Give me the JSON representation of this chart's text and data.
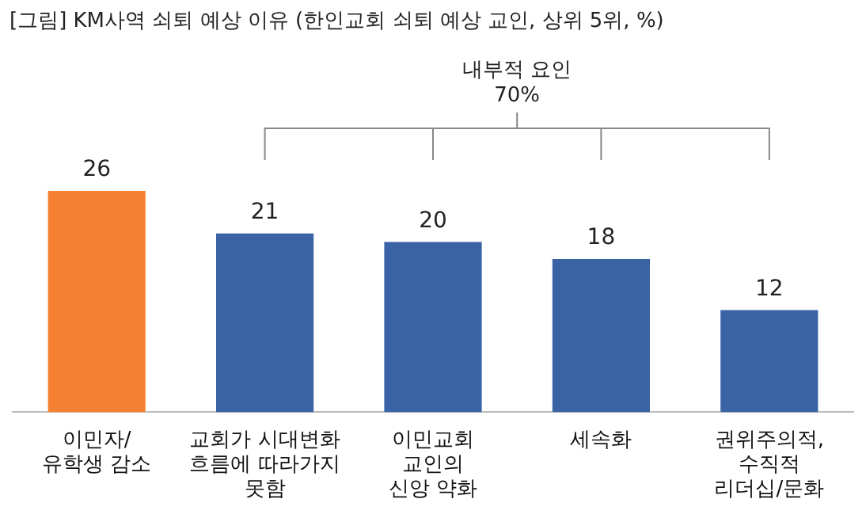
{
  "chart_data": {
    "type": "bar",
    "title": "[그림] KM사역 쇠퇴 예상 이유 (한인교회 쇠퇴 예상 교인, 상위 5위, %)",
    "categories": [
      "이민자/\n유학생 감소",
      "교회가 시대변화\n흐름에 따라가지\n못함",
      "이민교회\n교인의\n신앙 약화",
      "세속화",
      "권위주의적,\n수직적\n리더십/문화"
    ],
    "values": [
      26,
      21,
      20,
      18,
      12
    ],
    "colors": [
      "#f58232",
      "#3a63a6",
      "#3a63a6",
      "#3a63a6",
      "#3a63a6"
    ],
    "data_labels": true,
    "annotations": [
      "내부적 요인\n70%"
    ],
    "legend": false,
    "grid": false
  }
}
